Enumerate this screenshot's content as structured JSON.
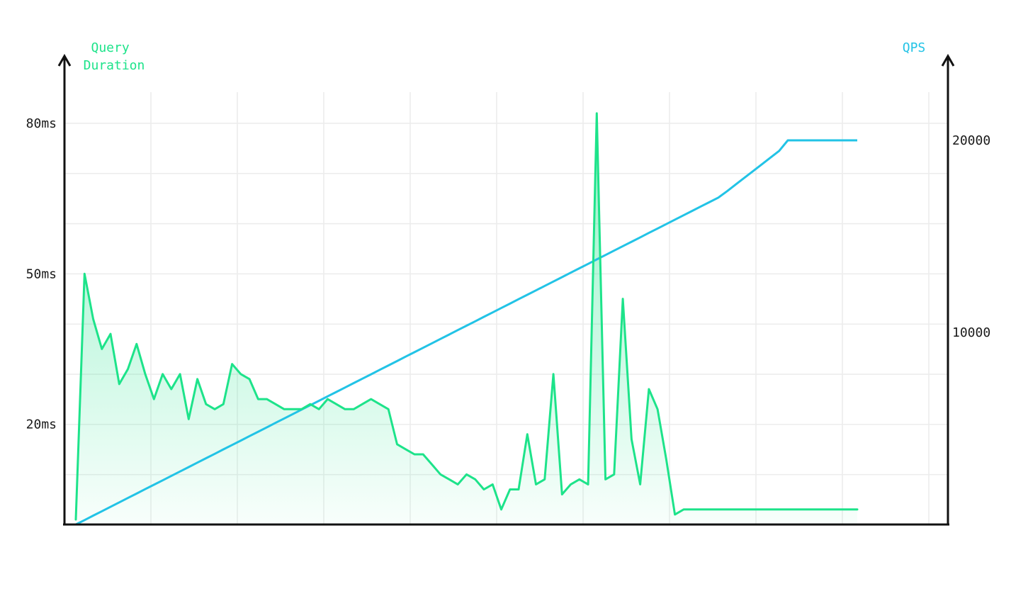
{
  "chart_data": {
    "type": "line",
    "colors": {
      "duration": "#1de38a",
      "qps": "#22c3e6",
      "axis": "#111111",
      "grid": "#ececec"
    },
    "y_left": {
      "title": [
        "Query",
        "Duration"
      ],
      "ticks": [
        20,
        50,
        80
      ],
      "tick_labels": [
        "20ms",
        "50ms",
        "80ms"
      ],
      "unit": "ms",
      "range": [
        0,
        90
      ]
    },
    "y_right": {
      "title": "QPS",
      "ticks": [
        10000,
        20000
      ],
      "tick_labels": [
        "10000",
        "20000"
      ],
      "range": [
        0,
        22000
      ]
    },
    "grid": true,
    "x": [
      0,
      1,
      2,
      3,
      4,
      5,
      6,
      7,
      8,
      9,
      10,
      11,
      12,
      13,
      14,
      15,
      16,
      17,
      18,
      19,
      20,
      21,
      22,
      23,
      24,
      25,
      26,
      27,
      28,
      29,
      30,
      31,
      32,
      33,
      34,
      35,
      36,
      37,
      38,
      39,
      40,
      41,
      42,
      43,
      44,
      45,
      46,
      47,
      48,
      49,
      50,
      51,
      52,
      53,
      54,
      55,
      56,
      57,
      58,
      59,
      60,
      61,
      62,
      63,
      64,
      65,
      66,
      67,
      68,
      69,
      70,
      71,
      72,
      73,
      74,
      75,
      76,
      77,
      78,
      79,
      80,
      81,
      82,
      83,
      84,
      85,
      86,
      87,
      88,
      89,
      90
    ],
    "series": [
      {
        "name": "Query Duration",
        "axis": "left",
        "values": [
          1,
          50,
          41,
          35,
          38,
          28,
          31,
          36,
          30,
          25,
          30,
          27,
          30,
          21,
          29,
          24,
          23,
          24,
          32,
          30,
          29,
          25,
          25,
          24,
          23,
          23,
          23,
          24,
          23,
          25,
          24,
          23,
          23,
          24,
          25,
          24,
          23,
          16,
          15,
          14,
          14,
          12,
          10,
          9,
          8,
          10,
          9,
          7,
          8,
          3,
          7,
          7,
          18,
          8,
          9,
          30,
          6,
          8,
          9,
          8,
          82,
          9,
          10,
          45,
          17,
          8,
          27,
          23,
          13,
          2,
          3,
          3,
          3,
          3,
          3,
          3,
          3,
          3,
          3,
          3,
          3,
          3,
          3,
          3,
          3,
          3,
          3,
          3,
          3,
          3,
          3
        ]
      },
      {
        "name": "QPS",
        "axis": "right",
        "values": [
          0,
          230,
          460,
          690,
          920,
          1150,
          1380,
          1610,
          1840,
          2070,
          2300,
          2530,
          2760,
          2990,
          3220,
          3450,
          3680,
          3910,
          4140,
          4370,
          4600,
          4830,
          5060,
          5290,
          5520,
          5750,
          5980,
          6210,
          6440,
          6670,
          6900,
          7130,
          7360,
          7590,
          7820,
          8050,
          8280,
          8510,
          8740,
          8970,
          9200,
          9430,
          9660,
          9890,
          10120,
          10350,
          10580,
          10810,
          11040,
          11270,
          11500,
          11730,
          11960,
          12190,
          12420,
          12650,
          12880,
          13110,
          13340,
          13570,
          13800,
          14030,
          14260,
          14490,
          14720,
          14950,
          15180,
          15410,
          15640,
          15870,
          16100,
          16330,
          16560,
          16790,
          17020,
          17350,
          17700,
          18050,
          18400,
          18750,
          19100,
          19450,
          20000,
          20000,
          20000,
          20000,
          20000,
          20000,
          20000,
          20000,
          20000
        ]
      }
    ]
  }
}
